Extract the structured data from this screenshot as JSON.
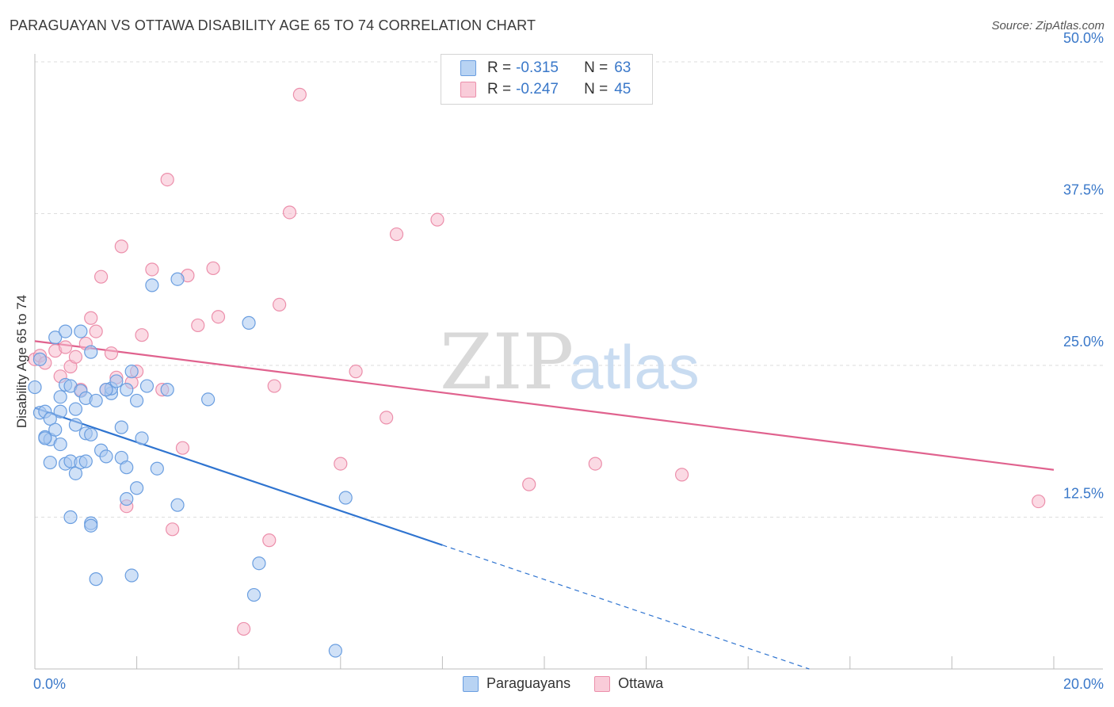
{
  "header": {
    "title": "PARAGUAYAN VS OTTAWA DISABILITY AGE 65 TO 74 CORRELATION CHART",
    "source": "Source: ZipAtlas.com"
  },
  "watermark": {
    "part1": "ZIP",
    "part2": "atlas"
  },
  "legend": {
    "rows": [
      {
        "r_label": "R =",
        "r_value": "-0.315",
        "n_label": "N =",
        "n_value": "63"
      },
      {
        "r_label": "R =",
        "r_value": "-0.247",
        "n_label": "N =",
        "n_value": "45"
      }
    ]
  },
  "bottom_legend": {
    "series1": "Paraguayans",
    "series2": "Ottawa"
  },
  "colors": {
    "blue_fill": "#a9c8f0",
    "blue_stroke": "#6a9ee0",
    "blue_line": "#2f74d0",
    "pink_fill": "#f7bccd",
    "pink_stroke": "#ec8fab",
    "pink_line": "#e0628e",
    "tick_label": "#3a78c9"
  },
  "chart_data": {
    "type": "scatter",
    "title": "PARAGUAYAN VS OTTAWA DISABILITY AGE 65 TO 74 CORRELATION CHART",
    "xlabel": "",
    "ylabel": "Disability Age 65 to 74",
    "xlim": [
      0,
      20
    ],
    "ylim": [
      0,
      50
    ],
    "x_tick_labels": [
      "0.0%",
      "20.0%"
    ],
    "y_ticks": [
      12.5,
      25.0,
      37.5,
      50.0
    ],
    "y_tick_labels": [
      "12.5%",
      "25.0%",
      "37.5%",
      "50.0%"
    ],
    "grid": true,
    "legend_position": "top-center",
    "series": [
      {
        "name": "Paraguayans",
        "r": -0.315,
        "n": 63,
        "points": [
          [
            0.0,
            23.2
          ],
          [
            0.1,
            25.5
          ],
          [
            0.1,
            21.1
          ],
          [
            0.2,
            21.2
          ],
          [
            0.2,
            19.1
          ],
          [
            0.3,
            18.9
          ],
          [
            0.3,
            20.6
          ],
          [
            0.3,
            17.0
          ],
          [
            0.4,
            19.7
          ],
          [
            0.4,
            27.3
          ],
          [
            0.5,
            21.2
          ],
          [
            0.5,
            22.4
          ],
          [
            0.5,
            18.5
          ],
          [
            0.6,
            16.9
          ],
          [
            0.6,
            23.4
          ],
          [
            0.7,
            17.1
          ],
          [
            0.6,
            27.8
          ],
          [
            0.7,
            23.3
          ],
          [
            0.7,
            12.5
          ],
          [
            0.8,
            21.4
          ],
          [
            0.9,
            22.9
          ],
          [
            0.8,
            16.1
          ],
          [
            0.9,
            17.0
          ],
          [
            0.8,
            20.1
          ],
          [
            0.9,
            27.8
          ],
          [
            1.0,
            19.4
          ],
          [
            1.0,
            17.1
          ],
          [
            1.1,
            26.1
          ],
          [
            1.0,
            22.3
          ],
          [
            1.1,
            19.3
          ],
          [
            1.1,
            12.0
          ],
          [
            1.1,
            11.8
          ],
          [
            1.2,
            22.1
          ],
          [
            1.2,
            7.4
          ],
          [
            1.3,
            18.0
          ],
          [
            1.4,
            17.5
          ],
          [
            1.5,
            22.7
          ],
          [
            1.5,
            23.1
          ],
          [
            1.6,
            23.7
          ],
          [
            1.7,
            19.9
          ],
          [
            1.7,
            17.4
          ],
          [
            1.8,
            23.0
          ],
          [
            1.8,
            14.0
          ],
          [
            1.8,
            16.6
          ],
          [
            1.9,
            24.5
          ],
          [
            1.9,
            7.7
          ],
          [
            2.0,
            22.1
          ],
          [
            2.0,
            14.9
          ],
          [
            2.1,
            19.0
          ],
          [
            2.2,
            23.3
          ],
          [
            2.3,
            31.6
          ],
          [
            2.4,
            16.5
          ],
          [
            2.6,
            23.0
          ],
          [
            2.8,
            13.5
          ],
          [
            2.8,
            32.1
          ],
          [
            3.4,
            22.2
          ],
          [
            4.2,
            28.5
          ],
          [
            4.3,
            6.1
          ],
          [
            4.4,
            8.7
          ],
          [
            5.9,
            1.5
          ],
          [
            6.1,
            14.1
          ],
          [
            0.2,
            19.0
          ],
          [
            1.4,
            23.0
          ]
        ]
      },
      {
        "name": "Ottawa",
        "r": -0.247,
        "n": 45,
        "points": [
          [
            0.0,
            25.5
          ],
          [
            0.1,
            25.8
          ],
          [
            0.2,
            25.2
          ],
          [
            0.4,
            26.2
          ],
          [
            0.5,
            24.1
          ],
          [
            0.6,
            26.5
          ],
          [
            0.7,
            24.9
          ],
          [
            0.8,
            25.7
          ],
          [
            0.9,
            23.0
          ],
          [
            1.0,
            26.8
          ],
          [
            1.1,
            28.9
          ],
          [
            1.2,
            27.8
          ],
          [
            1.3,
            32.3
          ],
          [
            1.4,
            23.0
          ],
          [
            1.5,
            26.0
          ],
          [
            1.6,
            24.0
          ],
          [
            1.7,
            34.8
          ],
          [
            1.8,
            13.4
          ],
          [
            1.9,
            23.6
          ],
          [
            2.0,
            24.5
          ],
          [
            2.1,
            27.5
          ],
          [
            2.3,
            32.9
          ],
          [
            2.5,
            23.0
          ],
          [
            2.6,
            40.3
          ],
          [
            2.7,
            11.5
          ],
          [
            2.9,
            18.2
          ],
          [
            3.0,
            32.4
          ],
          [
            3.2,
            28.3
          ],
          [
            3.5,
            33.0
          ],
          [
            3.6,
            29.0
          ],
          [
            4.1,
            3.3
          ],
          [
            4.6,
            10.6
          ],
          [
            4.7,
            23.3
          ],
          [
            4.8,
            30.0
          ],
          [
            5.0,
            37.6
          ],
          [
            5.2,
            47.3
          ],
          [
            6.0,
            16.9
          ],
          [
            6.3,
            24.5
          ],
          [
            6.9,
            20.7
          ],
          [
            7.1,
            35.8
          ],
          [
            7.9,
            37.0
          ],
          [
            9.7,
            15.2
          ],
          [
            11.0,
            16.9
          ],
          [
            12.7,
            16.0
          ],
          [
            19.7,
            13.8
          ]
        ]
      }
    ],
    "trend_lines": [
      {
        "series": "Paraguayans",
        "x_start": 0.0,
        "y_start": 21.5,
        "x_solid_end": 8.0,
        "y_solid_end": 10.2,
        "x_dashed_end": 15.2,
        "y_dashed_end": 0.0
      },
      {
        "series": "Ottawa",
        "x_start": 0.0,
        "y_start": 27.0,
        "x_end": 20.0,
        "y_end": 16.4
      }
    ]
  }
}
